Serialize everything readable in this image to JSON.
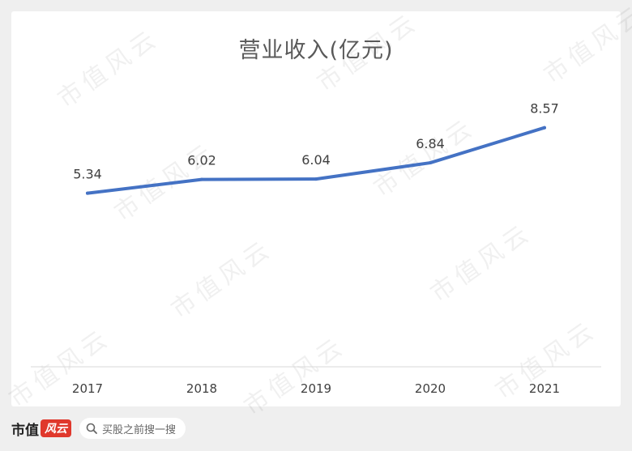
{
  "chart_data": {
    "type": "line",
    "title": "营业收入(亿元)",
    "categories": [
      "2017",
      "2018",
      "2019",
      "2020",
      "2021"
    ],
    "series": [
      {
        "values": [
          5.34,
          6.02,
          6.04,
          6.84,
          8.57
        ],
        "color": "#4472c4"
      }
    ],
    "data_labels": [
      "5.34",
      "6.02",
      "6.04",
      "6.84",
      "8.57"
    ],
    "grid": false,
    "legend": "none"
  },
  "footer": {
    "logo_text": "市值",
    "logo_badge": "风云",
    "search_icon": "search-icon",
    "search_text": "买股之前搜一搜"
  },
  "watermark": "市值风云"
}
